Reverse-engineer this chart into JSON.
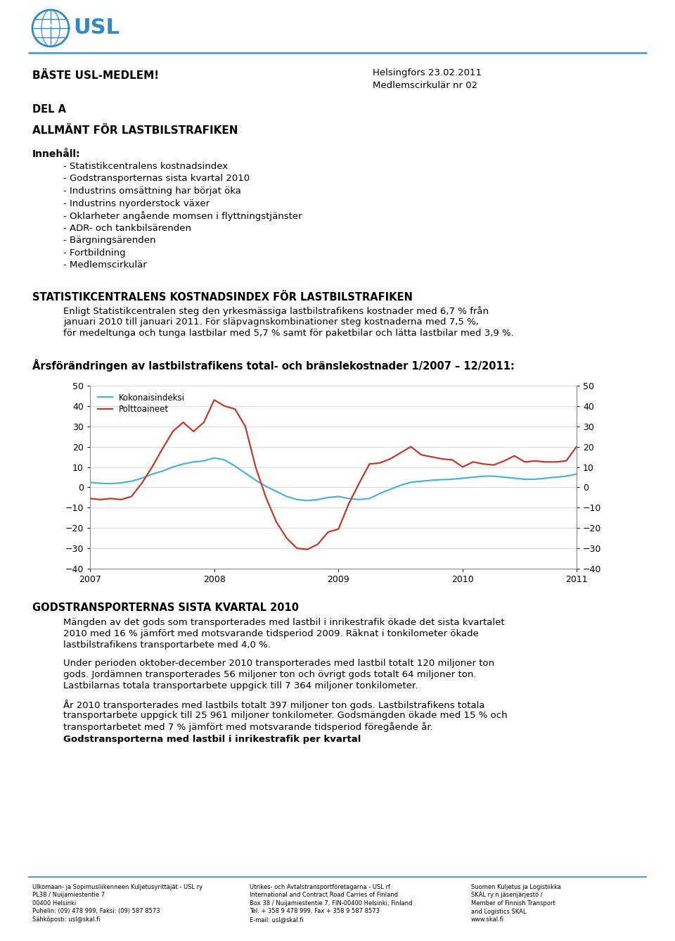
{
  "page_bg": "#ffffff",
  "header_line_color": "#5b9db5",
  "logo_color": "#2e8ac8",
  "heading1": "BÄSTE USL-MEDLEM!",
  "date_line": "Helsingfors 23.02.2011",
  "member_line": "Medlemscirkulär nr 02",
  "del_a": "DEL A",
  "section_title": "ALLMÄNT FÖR LASTBILSTRAFIKEN",
  "contents_label": "Innehåll:",
  "contents_items": [
    "- Statistikcentralens kostnadsindex",
    "- Godstransporternas sista kvartal 2010",
    "- Industrins omsättning har börjat öka",
    "- Industrins nyorderstock växer",
    "- Oklarheter angående momsen i flyttningstjänster",
    "- ADR- och tankbilsärenden",
    "- Bärgningsärenden",
    "- Fortbildning",
    "- Medlemscirkulär"
  ],
  "stat_title": "STATISTIKCENTRALENS KOSTNADSINDEX FÖR LASTBILSTRAFIKEN",
  "stat_line1": "Enligt Statistikcentralen steg den yrkesmässiga lastbilstrafikens kostnader med 6,7 % från",
  "stat_line2": "januari 2010 till januari 2011. För släpvagnskombinationer steg kostnaderna med 7,5 %,",
  "stat_line3": "för medeltunga och tunga lastbilar med 5,7 % samt för paketbilar och lätta lastbilar med 3,9 %.",
  "chart_title": "Årsförändringen av lastbilstrafikens total- och bränslekostnader 1/2007 – 12/2011:",
  "legend_blue": "Kokonaisindeksi",
  "legend_red": "Polttoaineet",
  "blue_color": "#4db3d6",
  "red_color": "#c0392b",
  "yticks": [
    -40,
    -30,
    -20,
    -10,
    0,
    10,
    20,
    30,
    40,
    50
  ],
  "xtick_labels": [
    "2007",
    "2008",
    "2009",
    "2010",
    "2011"
  ],
  "section2_title": "GODSTRANSPORTERNAS SISTA KVARTAL 2010",
  "sec2_lines1": [
    "Mängden av det gods som transporterades med lastbil i inrikestrafik ökade det sista kvartalet",
    "2010 med 16 % jämfört med motsvarande tidsperiod 2009. Räknat i tonkilometer ökade",
    "lastbilstrafikens transportarbete med 4,0 %."
  ],
  "sec2_lines2": [
    "Under perioden oktober-december 2010 transporterades med lastbil totalt 120 miljoner ton",
    "gods. Jordämnen transporterades 56 miljoner ton och övrigt gods totalt 64 miljoner ton.",
    "Lastbilarnas totala transportarbete uppgick till 7 364 miljoner tonkilometer."
  ],
  "sec2_lines3": [
    "År 2010 transporterades med lastbils totalt 397 miljoner ton gods. Lastbilstrafikens totala",
    "transportarbete uppgick till 25 961 miljoner tonkilometer. Godsmängden ökade med 15 % och",
    "transportarbetet med 7 % jämfört med motsvarande tidsperiod föregående år."
  ],
  "section2_bold": "Godstransporterna med lastbil i inrikestrafik per kvartal",
  "footer_cols": [
    [
      "Ulkomaan- ja Sopimusliikenneen Kuljetusyrittäjät - USL ry",
      "PL38 / Nuijamiestentie 7",
      "00400 Helsinki",
      "Puhelin: (09) 478 999, Faksi: (09) 587 8573",
      "Sähköposti: usl@skal.fi"
    ],
    [
      "Utrikes- och Avtalstransportföretagarna - USL rf",
      "International and Contract Road Carries of Finland",
      "Box 38 / Nuijamiestentie 7, FIN-00400 Helsinki, Finland",
      "Tel. + 358 9 478 999, Fax + 358 9 587 8573",
      "E-mail: usl@skal.fi"
    ],
    [
      "Suomen Kuljetus ja Logistiikka",
      "SKAL ry:n jäsenjärjestö /",
      "Member of Finnish Transport",
      "and Logistics SKAL",
      "www.skal.fi"
    ]
  ],
  "blue_data": [
    2.5,
    2.0,
    1.8,
    2.2,
    3.0,
    4.5,
    6.5,
    8.0,
    10.0,
    11.5,
    12.5,
    13.0,
    14.5,
    13.5,
    10.5,
    7.0,
    3.5,
    0.5,
    -2.0,
    -4.5,
    -6.0,
    -6.5,
    -6.0,
    -5.0,
    -4.5,
    -5.5,
    -6.0,
    -5.5,
    -3.0,
    -1.0,
    1.0,
    2.5,
    3.0,
    3.5,
    3.8,
    4.0,
    4.5,
    5.0,
    5.5,
    5.5,
    5.0,
    4.5,
    4.0,
    4.0,
    4.5,
    5.0,
    5.5,
    6.5
  ],
  "red_data": [
    -5.5,
    -6.0,
    -5.5,
    -6.0,
    -4.5,
    2.0,
    10.0,
    19.0,
    27.5,
    32.0,
    27.5,
    32.0,
    43.0,
    40.0,
    38.5,
    30.0,
    10.0,
    -5.0,
    -17.0,
    -25.0,
    -30.0,
    -30.5,
    -28.0,
    -22.0,
    -20.5,
    -8.0,
    2.0,
    11.5,
    12.0,
    14.0,
    17.0,
    20.0,
    16.0,
    15.0,
    14.0,
    13.5,
    10.0,
    12.5,
    11.5,
    11.0,
    13.0,
    15.5,
    12.5,
    13.0,
    12.5,
    12.5,
    13.0,
    20.0
  ]
}
